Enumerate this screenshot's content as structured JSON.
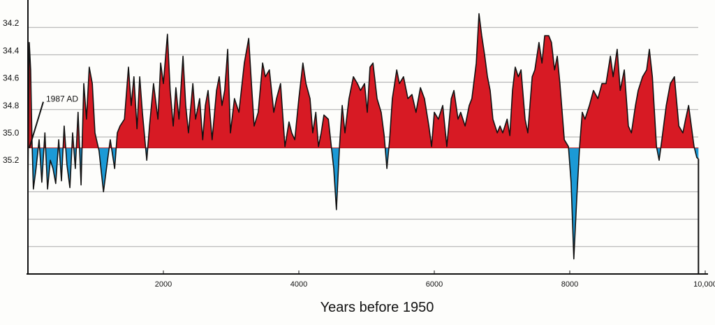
{
  "chart_data": {
    "type": "area",
    "title": "",
    "xlabel": "Years before 1950",
    "ylabel": "",
    "xlim": [
      0,
      10000
    ],
    "ylim": [
      34.0,
      36.0
    ],
    "y_inverted": true,
    "grid": "horizontal",
    "reference_value": 35.08,
    "colors": {
      "above": "#d71a24",
      "below": "#1b9ad6",
      "line": "#111111",
      "grid": "#aaaaaa"
    },
    "x_ticks": [
      {
        "value": 2000,
        "label": "2000"
      },
      {
        "value": 4000,
        "label": "4000"
      },
      {
        "value": 6000,
        "label": "6000"
      },
      {
        "value": 8000,
        "label": "8000"
      },
      {
        "value": 10000,
        "label": "10,000"
      }
    ],
    "y_ticks": [
      {
        "value": 34.2,
        "label": "34.2"
      },
      {
        "value": 34.4,
        "label": "34.4"
      },
      {
        "value": 34.6,
        "label": "34.6"
      },
      {
        "value": 34.8,
        "label": "34.8"
      },
      {
        "value": 35.0,
        "label": "35.0"
      },
      {
        "value": 35.2,
        "label": "35.2"
      }
    ],
    "y_gridlines": [
      34.2,
      34.4,
      34.6,
      34.8,
      35.0,
      35.2,
      35.4,
      35.6,
      35.8
    ],
    "annotation": {
      "text": "1987 AD",
      "x": 0,
      "y": 35.08
    },
    "x": [
      0,
      20,
      40,
      60,
      80,
      120,
      165,
      205,
      250,
      290,
      330,
      370,
      410,
      455,
      495,
      535,
      575,
      620,
      660,
      700,
      740,
      785,
      825,
      865,
      905,
      950,
      990,
      1050,
      1115,
      1175,
      1215,
      1280,
      1320,
      1360,
      1425,
      1485,
      1525,
      1565,
      1610,
      1650,
      1690,
      1755,
      1795,
      1855,
      1920,
      1960,
      2000,
      2060,
      2100,
      2145,
      2185,
      2230,
      2290,
      2330,
      2370,
      2435,
      2475,
      2535,
      2580,
      2620,
      2660,
      2720,
      2785,
      2825,
      2865,
      2905,
      2950,
      2990,
      3050,
      3115,
      3195,
      3260,
      3300,
      3340,
      3400,
      3465,
      3505,
      3565,
      3630,
      3670,
      3730,
      3795,
      3855,
      3895,
      3940,
      4000,
      4060,
      4105,
      4165,
      4205,
      4250,
      4290,
      4330,
      4370,
      4435,
      4475,
      4515,
      4555,
      4600,
      4640,
      4680,
      4740,
      4805,
      4865,
      4910,
      4970,
      5010,
      5050,
      5095,
      5155,
      5215,
      5260,
      5300,
      5340,
      5380,
      5445,
      5485,
      5545,
      5610,
      5670,
      5730,
      5795,
      5855,
      5920,
      5960,
      6000,
      6060,
      6125,
      6185,
      6250,
      6290,
      6350,
      6390,
      6455,
      6515,
      6555,
      6620,
      6660,
      6700,
      6745,
      6785,
      6825,
      6865,
      6930,
      6970,
      7010,
      7075,
      7115,
      7155,
      7195,
      7240,
      7280,
      7340,
      7380,
      7445,
      7485,
      7545,
      7590,
      7630,
      7690,
      7730,
      7775,
      7815,
      7855,
      7920,
      7980,
      8020,
      8060,
      8105,
      8145,
      8185,
      8225,
      8290,
      8350,
      8415,
      8475,
      8535,
      8600,
      8640,
      8700,
      8745,
      8805,
      8865,
      8910,
      8970,
      9010,
      9075,
      9135,
      9175,
      9220,
      9280,
      9320,
      9360,
      9425,
      9485,
      9545,
      9610,
      9670,
      9710,
      9755,
      9795,
      9835,
      9875,
      9900
    ],
    "y": [
      35.38,
      34.31,
      34.51,
      35.02,
      35.38,
      35.23,
      35.02,
      35.33,
      34.97,
      35.38,
      35.17,
      35.23,
      35.34,
      35.02,
      35.32,
      34.92,
      35.2,
      35.37,
      34.97,
      35.23,
      34.82,
      35.35,
      34.61,
      34.87,
      34.49,
      34.61,
      34.97,
      35.1,
      35.4,
      35.17,
      35.02,
      35.23,
      34.97,
      34.92,
      34.87,
      34.49,
      34.77,
      34.56,
      34.94,
      34.56,
      34.82,
      35.17,
      34.92,
      34.61,
      34.87,
      34.46,
      34.61,
      34.25,
      34.66,
      34.92,
      34.64,
      34.87,
      34.41,
      34.77,
      34.97,
      34.61,
      34.87,
      34.72,
      35.02,
      34.77,
      34.66,
      35.02,
      34.66,
      34.56,
      34.77,
      34.66,
      34.36,
      34.97,
      34.72,
      34.82,
      34.46,
      34.28,
      34.61,
      34.92,
      34.82,
      34.46,
      34.56,
      34.51,
      34.82,
      34.72,
      34.61,
      35.07,
      34.89,
      34.97,
      35.02,
      34.72,
      34.46,
      34.61,
      34.72,
      34.97,
      34.82,
      35.07,
      34.97,
      34.84,
      34.87,
      35.05,
      35.23,
      35.53,
      35.07,
      34.77,
      34.97,
      34.72,
      34.56,
      34.61,
      34.66,
      34.61,
      34.82,
      34.49,
      34.46,
      34.72,
      34.82,
      34.99,
      35.23,
      35.02,
      34.72,
      34.51,
      34.61,
      34.56,
      34.72,
      34.69,
      34.82,
      34.64,
      34.72,
      34.92,
      35.07,
      34.82,
      34.87,
      34.77,
      35.07,
      34.72,
      34.66,
      34.87,
      34.82,
      34.92,
      34.77,
      34.72,
      34.46,
      34.1,
      34.26,
      34.41,
      34.56,
      34.66,
      34.87,
      34.97,
      34.92,
      34.97,
      34.87,
      34.99,
      34.66,
      34.49,
      34.56,
      34.51,
      34.87,
      34.97,
      34.56,
      34.51,
      34.31,
      34.46,
      34.26,
      34.26,
      34.31,
      34.51,
      34.41,
      34.61,
      35.02,
      35.07,
      35.33,
      35.89,
      35.43,
      35.07,
      34.82,
      34.87,
      34.77,
      34.66,
      34.72,
      34.61,
      34.61,
      34.41,
      34.56,
      34.36,
      34.66,
      34.51,
      34.92,
      34.97,
      34.77,
      34.66,
      34.56,
      34.51,
      34.36,
      34.56,
      35.07,
      35.17,
      35.02,
      34.77,
      34.61,
      34.56,
      34.92,
      34.97,
      34.87,
      34.77,
      34.92,
      35.07,
      35.15,
      35.16
    ]
  }
}
